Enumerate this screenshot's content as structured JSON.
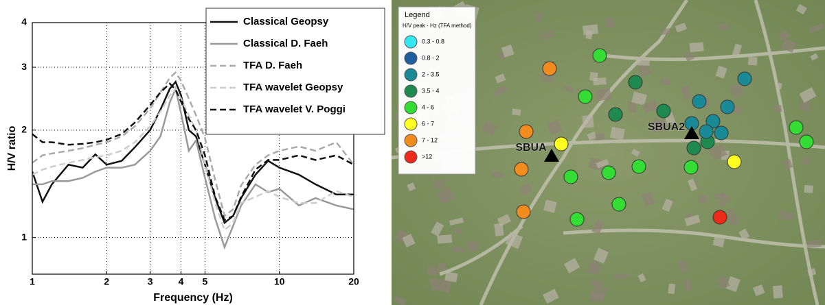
{
  "chart_data": {
    "type": "line",
    "xlabel": "Frequency (Hz)",
    "ylabel": "H/V ratio",
    "xscale": "log",
    "yscale": "log",
    "grid": true,
    "legend": "upper right",
    "xlim": [
      1,
      20
    ],
    "xticks": [
      1,
      2,
      3,
      4,
      5,
      10,
      20
    ],
    "ylim": [
      0.79,
      4
    ],
    "yticks": [
      1,
      2,
      3,
      4
    ],
    "x": [
      1,
      1.1,
      1.2,
      1.4,
      1.6,
      1.8,
      2,
      2.3,
      2.6,
      3,
      3.3,
      3.6,
      3.8,
      4,
      4.3,
      4.6,
      5,
      5.5,
      6,
      6.5,
      7,
      8,
      9,
      10,
      12,
      14,
      17,
      20
    ],
    "series": [
      {
        "name": "Classical Geopsy",
        "color": "#111111",
        "linestyle": "solid",
        "values": [
          1.53,
          1.26,
          1.41,
          1.6,
          1.57,
          1.71,
          1.6,
          1.64,
          1.79,
          2.0,
          2.28,
          2.61,
          2.73,
          2.5,
          2.0,
          1.92,
          1.6,
          1.29,
          1.1,
          1.15,
          1.29,
          1.5,
          1.64,
          1.57,
          1.5,
          1.41,
          1.32,
          1.32
        ]
      },
      {
        "name": "Classical D. Faeh",
        "color": "#999999",
        "linestyle": "solid",
        "values": [
          1.41,
          1.41,
          1.44,
          1.44,
          1.47,
          1.53,
          1.57,
          1.57,
          1.6,
          1.75,
          1.92,
          2.39,
          2.61,
          2.23,
          1.75,
          1.87,
          1.47,
          1.13,
          0.94,
          1.08,
          1.23,
          1.41,
          1.34,
          1.37,
          1.23,
          1.29,
          1.23,
          1.2
        ]
      },
      {
        "name": "TFA D. Faeh",
        "color": "#aaaaaa",
        "linestyle": "dashed",
        "values": [
          1.62,
          1.7,
          1.72,
          1.75,
          1.78,
          1.82,
          1.85,
          1.92,
          2.05,
          2.3,
          2.55,
          2.8,
          2.9,
          2.75,
          2.45,
          2.2,
          1.9,
          1.45,
          1.15,
          1.2,
          1.4,
          1.6,
          1.7,
          1.75,
          1.8,
          1.75,
          1.85,
          1.6
        ]
      },
      {
        "name": "TFA wavelet Geopsy",
        "color": "#cccccc",
        "linestyle": "dashed",
        "values": [
          1.5,
          1.55,
          1.58,
          1.62,
          1.65,
          1.68,
          1.7,
          1.75,
          1.85,
          2.05,
          2.25,
          2.5,
          2.6,
          2.45,
          2.2,
          2.0,
          1.6,
          1.25,
          1.05,
          1.1,
          1.25,
          1.3,
          1.35,
          1.3,
          1.25,
          1.25,
          1.35,
          1.3
        ]
      },
      {
        "name": "TFA wavelet V. Poggi",
        "color": "#111111",
        "linestyle": "dashed",
        "values": [
          1.95,
          1.85,
          1.85,
          1.82,
          1.83,
          1.85,
          1.88,
          1.95,
          2.1,
          2.35,
          2.55,
          2.7,
          2.6,
          2.4,
          2.15,
          2.0,
          1.7,
          1.3,
          1.12,
          1.15,
          1.3,
          1.55,
          1.65,
          1.65,
          1.7,
          1.65,
          1.7,
          1.6
        ]
      }
    ]
  },
  "map": {
    "legend": {
      "title": "Legend",
      "subtitle": "H/V peak - Hz (TFA method)",
      "classes": [
        {
          "label": "0.3 - 0.8",
          "color": "#33e8f0"
        },
        {
          "label": "0.8 - 2",
          "color": "#1f5f9f"
        },
        {
          "label": "2 - 3.5",
          "color": "#1a8a96"
        },
        {
          "label": "3.5 - 4",
          "color": "#1e8a50"
        },
        {
          "label": "4 - 6",
          "color": "#33dd33"
        },
        {
          "label": "6 - 7",
          "color": "#ffff22"
        },
        {
          "label": "7 - 12",
          "color": "#f28c1e"
        },
        {
          "label": ">12",
          "color": "#ee2a1a"
        }
      ]
    },
    "sites": [
      {
        "label": "SBUA"
      },
      {
        "label": "SBUA2"
      }
    ]
  }
}
